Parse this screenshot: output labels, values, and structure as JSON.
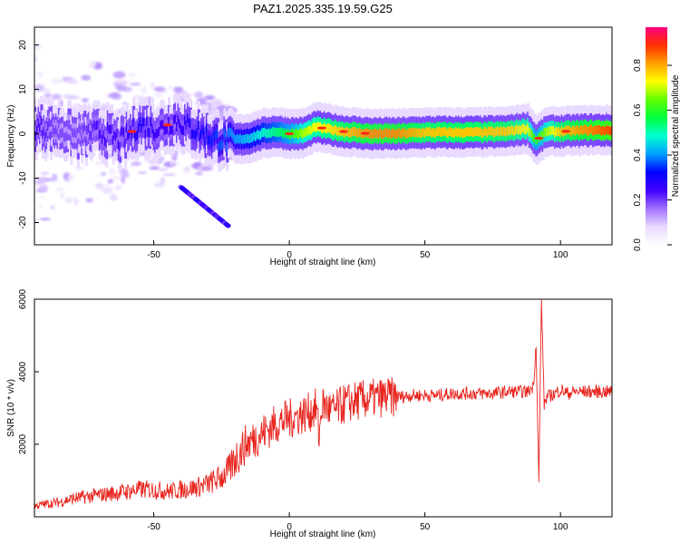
{
  "chart_data": [
    {
      "type": "heatmap",
      "title": "PAZ1.2025.335.19.59.G25",
      "xlabel": "Height of straight line (km)",
      "ylabel": "Frequency (Hz)",
      "xlim": [
        -94,
        119
      ],
      "ylim": [
        -25,
        24
      ],
      "xticks": [
        -50,
        0,
        50,
        100
      ],
      "yticks": [
        20,
        10,
        0,
        -10,
        -20
      ],
      "colorbar": {
        "label": "Normalized spectral amplitude",
        "range": [
          0,
          0.97
        ],
        "ticks": [
          0.0,
          0.2,
          0.4,
          0.6,
          0.8
        ],
        "colormap": [
          "#ffffff",
          "#e8d8ff",
          "#a070ff",
          "#4000ff",
          "#0000ff",
          "#00a0ff",
          "#00ffd0",
          "#00ff40",
          "#60ff00",
          "#ffff00",
          "#ffa000",
          "#ff3000",
          "#ff0080"
        ]
      },
      "ridge": {
        "description_points_x": [
          -94,
          -85,
          -78,
          -70,
          -62,
          -55,
          -48,
          -42,
          -35,
          -28,
          -22,
          -15,
          -10,
          -5,
          0,
          5,
          10,
          20,
          30,
          40,
          50,
          60,
          70,
          80,
          88,
          91,
          95,
          100,
          110,
          119
        ],
        "frequency_hz": [
          1.5,
          1.0,
          -0.5,
          0.5,
          -1.5,
          2.0,
          1.0,
          3.0,
          1.0,
          -1.0,
          -1.5,
          -1.0,
          0.0,
          0.5,
          0.0,
          0.0,
          1.5,
          0.5,
          0.0,
          0.0,
          0.3,
          0.3,
          0.3,
          0.5,
          1.2,
          -1.5,
          0.5,
          0.5,
          0.8,
          0.8
        ],
        "amplitude": [
          0.25,
          0.2,
          0.2,
          0.25,
          0.25,
          0.3,
          0.25,
          0.25,
          0.3,
          0.35,
          0.4,
          0.45,
          0.5,
          0.55,
          0.6,
          0.7,
          0.75,
          0.8,
          0.85,
          0.85,
          0.8,
          0.8,
          0.8,
          0.8,
          0.75,
          0.6,
          0.7,
          0.8,
          0.85,
          0.9
        ]
      }
    },
    {
      "type": "line",
      "title": "",
      "xlabel": "Height of straight line (km)",
      "ylabel": "SNR (10 * v/v)",
      "xlim": [
        -94,
        119
      ],
      "ylim": [
        0,
        6000
      ],
      "xticks": [
        -50,
        0,
        50,
        100
      ],
      "yticks": [
        2000,
        4000,
        6000
      ],
      "color": "#e8251f",
      "series": [
        {
          "x": [
            -94,
            -90,
            -85,
            -80,
            -75,
            -70,
            -65,
            -60,
            -55,
            -50,
            -45,
            -40,
            -35,
            -30,
            -25,
            -22,
            -20,
            -18,
            -16,
            -14,
            -12,
            -10,
            -8,
            -6,
            -4,
            -2,
            0,
            2,
            4,
            6,
            8,
            10,
            11,
            12,
            14,
            16,
            18,
            20,
            25,
            30,
            35,
            40,
            45,
            50,
            55,
            60,
            65,
            70,
            75,
            80,
            85,
            88,
            90,
            91,
            92,
            93,
            94,
            95,
            98,
            100,
            103,
            105,
            110,
            115,
            119
          ],
          "y": [
            300,
            350,
            400,
            500,
            550,
            600,
            650,
            700,
            750,
            750,
            700,
            750,
            800,
            900,
            1100,
            1300,
            1600,
            1800,
            2000,
            2100,
            2200,
            2300,
            2400,
            2500,
            2600,
            2650,
            2700,
            2750,
            2800,
            2850,
            2900,
            3000,
            2200,
            3100,
            3000,
            2900,
            3000,
            3100,
            3200,
            3250,
            3300,
            3300,
            3350,
            3350,
            3350,
            3400,
            3400,
            3400,
            3400,
            3450,
            3450,
            3450,
            3600,
            4800,
            900,
            6000,
            3100,
            3300,
            3400,
            3500,
            3400,
            3450,
            3450,
            3450,
            3450
          ]
        }
      ]
    }
  ]
}
